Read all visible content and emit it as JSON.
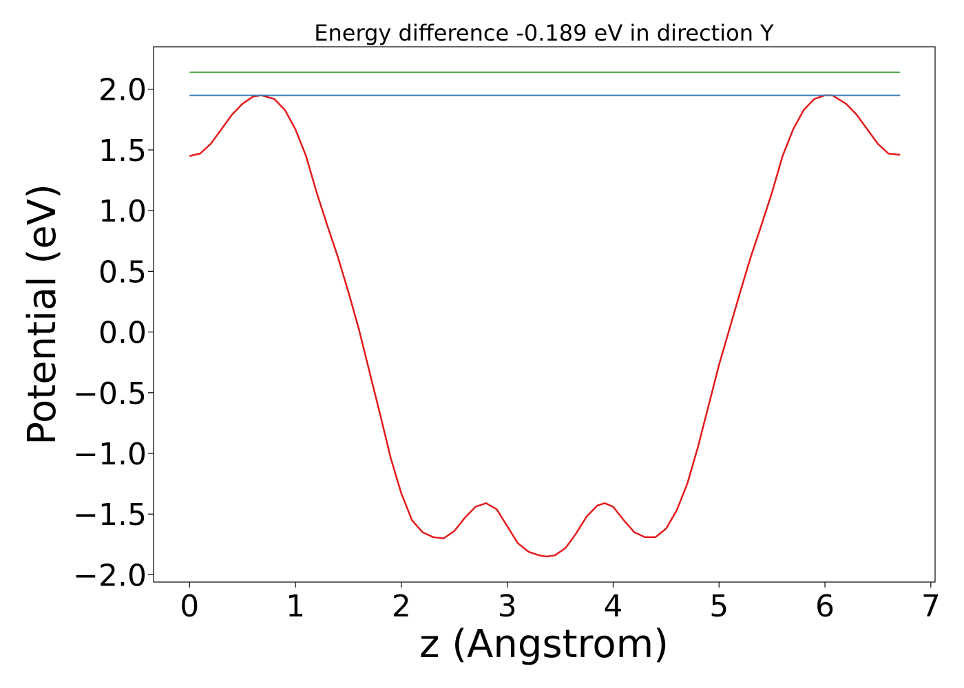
{
  "chart_data": {
    "type": "line",
    "title": "Energy difference -0.189 eV in direction Y",
    "xlabel": "z (Angstrom)",
    "ylabel": "Potential (eV)",
    "xlim": [
      -0.34,
      7.04
    ],
    "ylim": [
      -2.06,
      2.35
    ],
    "x_ticks": [
      0,
      1,
      2,
      3,
      4,
      5,
      6,
      7
    ],
    "y_ticks": [
      -2.0,
      -1.5,
      -1.0,
      -0.5,
      0.0,
      0.5,
      1.0,
      1.5,
      2.0
    ],
    "x_tick_labels": [
      "0",
      "1",
      "2",
      "3",
      "4",
      "5",
      "6",
      "7"
    ],
    "y_tick_labels": [
      "−2.0",
      "−1.5",
      "−1.0",
      "−0.5",
      "0.0",
      "0.5",
      "1.0",
      "1.5",
      "2.0"
    ],
    "grid": false,
    "legend": "none",
    "series": [
      {
        "color": "#e41a1c",
        "x": [
          0.0,
          0.1,
          0.2,
          0.3,
          0.4,
          0.5,
          0.6,
          0.68,
          0.8,
          0.9,
          1.0,
          1.1,
          1.2,
          1.3,
          1.4,
          1.5,
          1.6,
          1.7,
          1.8,
          1.9,
          2.0,
          2.1,
          2.2,
          2.3,
          2.4,
          2.5,
          2.6,
          2.7,
          2.8,
          2.9,
          3.0,
          3.1,
          3.2,
          3.3,
          3.37,
          3.45,
          3.55,
          3.65,
          3.75,
          3.85,
          3.92,
          4.0,
          4.1,
          4.2,
          4.3,
          4.4,
          4.5,
          4.6,
          4.7,
          4.8,
          4.9,
          5.0,
          5.1,
          5.2,
          5.3,
          5.4,
          5.5,
          5.6,
          5.7,
          5.8,
          5.9,
          6.0,
          6.07,
          6.2,
          6.3,
          6.4,
          6.5,
          6.6,
          6.71
        ],
        "values": [
          1.45,
          1.47,
          1.55,
          1.67,
          1.79,
          1.88,
          1.94,
          1.95,
          1.92,
          1.83,
          1.67,
          1.45,
          1.15,
          0.88,
          0.62,
          0.33,
          0.02,
          -0.33,
          -0.68,
          -1.04,
          -1.33,
          -1.55,
          -1.65,
          -1.69,
          -1.7,
          -1.64,
          -1.53,
          -1.44,
          -1.41,
          -1.46,
          -1.6,
          -1.74,
          -1.81,
          -1.84,
          -1.85,
          -1.84,
          -1.78,
          -1.66,
          -1.52,
          -1.43,
          -1.41,
          -1.44,
          -1.55,
          -1.65,
          -1.69,
          -1.69,
          -1.62,
          -1.47,
          -1.25,
          -0.95,
          -0.61,
          -0.27,
          0.03,
          0.33,
          0.62,
          0.88,
          1.15,
          1.45,
          1.67,
          1.83,
          1.92,
          1.95,
          1.95,
          1.88,
          1.79,
          1.67,
          1.55,
          1.47,
          1.46
        ]
      },
      {
        "color": "#377eb8",
        "x": [
          0.0,
          6.71
        ],
        "values": [
          1.95,
          1.95
        ]
      },
      {
        "color": "#4daf4a",
        "x": [
          0.0,
          6.71
        ],
        "values": [
          2.14,
          2.14
        ]
      }
    ]
  }
}
